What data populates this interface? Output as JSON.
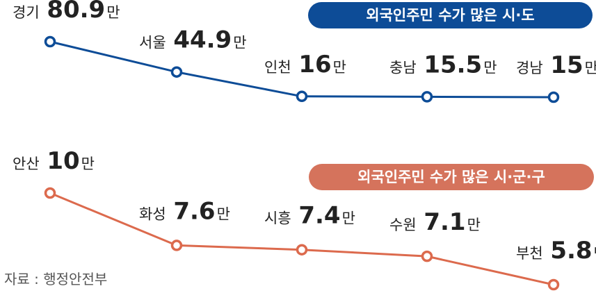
{
  "chart_data": [
    {
      "type": "line",
      "title": "외국인주민 수가 많은 시·도",
      "color": "#0d4c97",
      "badge_color": "#0d4c97",
      "unit": "만",
      "points": [
        {
          "name": "경기",
          "value": 80.9,
          "label": "80.9"
        },
        {
          "name": "서울",
          "value": 44.9,
          "label": "44.9"
        },
        {
          "name": "인천",
          "value": 16,
          "label": "16"
        },
        {
          "name": "충남",
          "value": 15.5,
          "label": "15.5"
        },
        {
          "name": "경남",
          "value": 15,
          "label": "15"
        }
      ]
    },
    {
      "type": "line",
      "title": "외국인주민 수가 많은 시·군·구",
      "color": "#dc6a4d",
      "badge_color": "#d5735c",
      "unit": "만",
      "points": [
        {
          "name": "안산",
          "value": 10,
          "label": "10"
        },
        {
          "name": "화성",
          "value": 7.6,
          "label": "7.6"
        },
        {
          "name": "시흥",
          "value": 7.4,
          "label": "7.4"
        },
        {
          "name": "수원",
          "value": 7.1,
          "label": "7.1"
        },
        {
          "name": "부천",
          "value": 5.8,
          "label": "5.8"
        }
      ]
    }
  ],
  "source": "자료 : 행정안전부"
}
